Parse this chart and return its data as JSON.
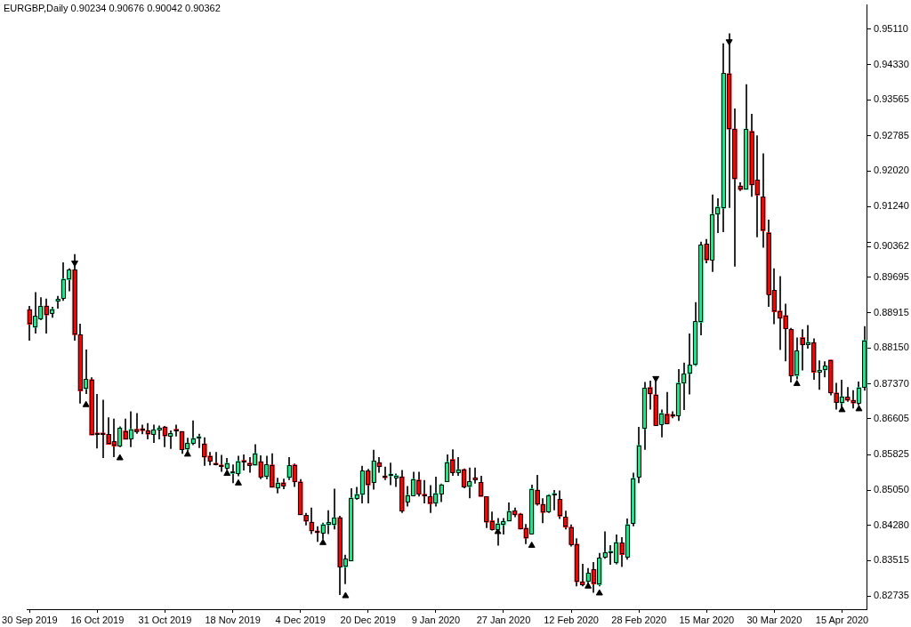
{
  "chart_data": {
    "type": "candlestick",
    "title": "EURGBP,Daily 0.90234 0.90676 0.90042 0.90362",
    "categories": [
      "30 Sep 2019",
      null,
      null,
      null,
      null,
      null,
      null,
      null,
      null,
      null,
      null,
      null,
      "16 Oct 2019",
      null,
      null,
      null,
      null,
      null,
      null,
      null,
      null,
      null,
      null,
      null,
      "31 Oct 2019",
      null,
      null,
      null,
      null,
      null,
      null,
      null,
      null,
      null,
      null,
      null,
      "18 Nov 2019",
      null,
      null,
      null,
      null,
      null,
      null,
      null,
      null,
      null,
      null,
      null,
      "4 Dec 2019",
      null,
      null,
      null,
      null,
      null,
      null,
      null,
      null,
      null,
      null,
      null,
      "20 Dec 2019",
      null,
      null,
      null,
      null,
      null,
      null,
      null,
      null,
      null,
      null,
      null,
      "9 Jan 2020",
      null,
      null,
      null,
      null,
      null,
      null,
      null,
      null,
      null,
      null,
      null,
      "27 Jan 2020",
      null,
      null,
      null,
      null,
      null,
      null,
      null,
      null,
      null,
      null,
      null,
      "12 Feb 2020",
      null,
      null,
      null,
      null,
      null,
      null,
      null,
      null,
      null,
      null,
      null,
      "28 Feb 2020",
      null,
      null,
      null,
      null,
      null,
      null,
      null,
      null,
      null,
      null,
      null,
      "15 Mar 2020",
      null,
      null,
      null,
      null,
      null,
      null,
      null,
      null,
      null,
      null,
      null,
      "30 Mar 2020",
      null,
      null,
      null,
      null,
      null,
      null,
      null,
      null,
      null,
      null,
      null,
      "15 Apr 2020",
      null,
      null,
      null,
      null
    ],
    "ohlc": [
      [
        0.8899,
        0.8907,
        0.8831,
        0.8867
      ],
      [
        0.886,
        0.8937,
        0.8847,
        0.8885
      ],
      [
        0.8878,
        0.8926,
        0.8876,
        0.8907
      ],
      [
        0.8907,
        0.8923,
        0.8847,
        0.8887
      ],
      [
        0.8891,
        0.8905,
        0.8881,
        0.89
      ],
      [
        0.8917,
        0.8929,
        0.8901,
        0.8922
      ],
      [
        0.8923,
        0.9002,
        0.8918,
        0.8966
      ],
      [
        0.8964,
        0.8989,
        0.8939,
        0.8986
      ],
      [
        0.8986,
        0.902,
        0.8831,
        0.8844
      ],
      [
        0.8844,
        0.8868,
        0.8694,
        0.8721
      ],
      [
        0.8726,
        0.8812,
        0.8715,
        0.8747
      ],
      [
        0.8746,
        0.8751,
        0.8625,
        0.8625
      ],
      [
        0.8627,
        0.8715,
        0.8596,
        0.8626
      ],
      [
        0.8627,
        0.8702,
        0.8575,
        0.8626
      ],
      [
        0.8627,
        0.8664,
        0.8605,
        0.8605
      ],
      [
        0.8611,
        0.8661,
        0.8577,
        0.8601
      ],
      [
        0.8601,
        0.8644,
        0.8599,
        0.8641
      ],
      [
        0.8634,
        0.8661,
        0.8616,
        0.8616
      ],
      [
        0.8617,
        0.8677,
        0.8599,
        0.8638
      ],
      [
        0.8638,
        0.8673,
        0.8628,
        0.8633
      ],
      [
        0.8638,
        0.8648,
        0.8627,
        0.8635
      ],
      [
        0.8635,
        0.8651,
        0.8616,
        0.8627
      ],
      [
        0.8626,
        0.8648,
        0.8608,
        0.8637
      ],
      [
        0.8636,
        0.8646,
        0.8616,
        0.8641
      ],
      [
        0.8643,
        0.8645,
        0.8599,
        0.8623
      ],
      [
        0.8622,
        0.8635,
        0.8595,
        0.8629
      ],
      [
        0.8635,
        0.8648,
        0.8622,
        0.8634
      ],
      [
        0.8633,
        0.8633,
        0.8584,
        0.8593
      ],
      [
        0.8594,
        0.8619,
        0.8582,
        0.8608
      ],
      [
        0.8606,
        0.8657,
        0.8603,
        0.8618
      ],
      [
        0.8618,
        0.8628,
        0.8597,
        0.8622
      ],
      [
        0.8606,
        0.862,
        0.8558,
        0.8577
      ],
      [
        0.8579,
        0.8588,
        0.8559,
        0.8568
      ],
      [
        0.8561,
        0.8588,
        0.8559,
        0.856
      ],
      [
        0.856,
        0.8582,
        0.8545,
        0.8556
      ],
      [
        0.8553,
        0.8575,
        0.8549,
        0.8564
      ],
      [
        0.8541,
        0.8561,
        0.852,
        0.8545
      ],
      [
        0.8541,
        0.858,
        0.8535,
        0.8568
      ],
      [
        0.8567,
        0.8583,
        0.8548,
        0.8566
      ],
      [
        0.8564,
        0.8577,
        0.8543,
        0.8559
      ],
      [
        0.8559,
        0.8605,
        0.8559,
        0.8585
      ],
      [
        0.8567,
        0.8581,
        0.8529,
        0.8533
      ],
      [
        0.8534,
        0.858,
        0.8529,
        0.8561
      ],
      [
        0.856,
        0.8585,
        0.8511,
        0.8511
      ],
      [
        0.8509,
        0.8532,
        0.8498,
        0.8521
      ],
      [
        0.8521,
        0.853,
        0.8507,
        0.8514
      ],
      [
        0.8532,
        0.8577,
        0.8527,
        0.8559
      ],
      [
        0.856,
        0.8563,
        0.8512,
        0.8523
      ],
      [
        0.8523,
        0.8529,
        0.8451,
        0.8451
      ],
      [
        0.845,
        0.8455,
        0.8428,
        0.8437
      ],
      [
        0.8435,
        0.8467,
        0.8409,
        0.8416
      ],
      [
        0.8413,
        0.8426,
        0.8392,
        0.8412
      ],
      [
        0.8411,
        0.8434,
        0.8398,
        0.843
      ],
      [
        0.8429,
        0.8461,
        0.8409,
        0.8435
      ],
      [
        0.8429,
        0.8508,
        0.8419,
        0.8445
      ],
      [
        0.8445,
        0.8449,
        0.8276,
        0.8337
      ],
      [
        0.8337,
        0.8364,
        0.83,
        0.8355
      ],
      [
        0.835,
        0.8509,
        0.835,
        0.8488
      ],
      [
        0.8486,
        0.8512,
        0.8484,
        0.8496
      ],
      [
        0.8495,
        0.8558,
        0.8476,
        0.8547
      ],
      [
        0.8547,
        0.8551,
        0.8476,
        0.8516
      ],
      [
        0.8521,
        0.8593,
        0.8506,
        0.8569
      ],
      [
        0.8565,
        0.8577,
        0.8543,
        0.8556
      ],
      [
        0.8534,
        0.8556,
        0.8527,
        0.8532
      ],
      [
        0.8536,
        0.8565,
        0.8516,
        0.854
      ],
      [
        0.8532,
        0.8541,
        0.8512,
        0.8537
      ],
      [
        0.8534,
        0.8549,
        0.8455,
        0.8459
      ],
      [
        0.8479,
        0.8514,
        0.8469,
        0.8494
      ],
      [
        0.8493,
        0.8545,
        0.8493,
        0.8529
      ],
      [
        0.8527,
        0.8545,
        0.8491,
        0.8496
      ],
      [
        0.8496,
        0.8527,
        0.8476,
        0.8492
      ],
      [
        0.8491,
        0.8516,
        0.8455,
        0.8475
      ],
      [
        0.8476,
        0.8534,
        0.8469,
        0.8498
      ],
      [
        0.8496,
        0.8519,
        0.8479,
        0.8517
      ],
      [
        0.8523,
        0.8583,
        0.8523,
        0.8566
      ],
      [
        0.8572,
        0.8594,
        0.8536,
        0.8543
      ],
      [
        0.8543,
        0.8577,
        0.8536,
        0.855
      ],
      [
        0.855,
        0.8552,
        0.8509,
        0.8512
      ],
      [
        0.8512,
        0.8554,
        0.8487,
        0.8524
      ],
      [
        0.8532,
        0.8554,
        0.8519,
        0.8527
      ],
      [
        0.8522,
        0.8536,
        0.8491,
        0.8491
      ],
      [
        0.8491,
        0.8491,
        0.8422,
        0.8435
      ],
      [
        0.8438,
        0.8458,
        0.8417,
        0.8419
      ],
      [
        0.8419,
        0.8444,
        0.8384,
        0.8432
      ],
      [
        0.8429,
        0.8444,
        0.8408,
        0.8437
      ],
      [
        0.8437,
        0.8478,
        0.8437,
        0.8459
      ],
      [
        0.846,
        0.8467,
        0.8446,
        0.8451
      ],
      [
        0.8453,
        0.8455,
        0.8419,
        0.842
      ],
      [
        0.8422,
        0.8431,
        0.8387,
        0.84
      ],
      [
        0.8409,
        0.8517,
        0.8408,
        0.8508
      ],
      [
        0.8505,
        0.8538,
        0.8471,
        0.8474
      ],
      [
        0.8474,
        0.8487,
        0.8433,
        0.8456
      ],
      [
        0.8457,
        0.8496,
        0.8455,
        0.8494
      ],
      [
        0.8494,
        0.8505,
        0.8461,
        0.8495
      ],
      [
        0.8485,
        0.8504,
        0.8442,
        0.8448
      ],
      [
        0.8446,
        0.846,
        0.8419,
        0.8424
      ],
      [
        0.8424,
        0.843,
        0.8382,
        0.8386
      ],
      [
        0.8387,
        0.84,
        0.8295,
        0.8305
      ],
      [
        0.8305,
        0.8344,
        0.8295,
        0.8298
      ],
      [
        0.8305,
        0.8335,
        0.8295,
        0.8324
      ],
      [
        0.8332,
        0.8348,
        0.8281,
        0.83
      ],
      [
        0.8298,
        0.8368,
        0.8295,
        0.8357
      ],
      [
        0.8358,
        0.8415,
        0.8355,
        0.8369
      ],
      [
        0.8368,
        0.8385,
        0.8342,
        0.8371
      ],
      [
        0.8346,
        0.8408,
        0.8343,
        0.8391
      ],
      [
        0.839,
        0.8402,
        0.8337,
        0.8364
      ],
      [
        0.8358,
        0.8443,
        0.8353,
        0.843
      ],
      [
        0.8432,
        0.8543,
        0.8426,
        0.8531
      ],
      [
        0.8534,
        0.8643,
        0.852,
        0.8603
      ],
      [
        0.8639,
        0.8741,
        0.8593,
        0.8728
      ],
      [
        0.8729,
        0.8744,
        0.8681,
        0.8715
      ],
      [
        0.8713,
        0.8744,
        0.8646,
        0.8646
      ],
      [
        0.8648,
        0.8681,
        0.862,
        0.8673
      ],
      [
        0.8671,
        0.8719,
        0.8649,
        0.865
      ],
      [
        0.8667,
        0.8677,
        0.8662,
        0.8666
      ],
      [
        0.8667,
        0.8769,
        0.8656,
        0.8739
      ],
      [
        0.8738,
        0.8783,
        0.868,
        0.8759
      ],
      [
        0.8759,
        0.8847,
        0.8714,
        0.8778
      ],
      [
        0.8778,
        0.8915,
        0.8776,
        0.8873
      ],
      [
        0.8871,
        0.9047,
        0.8843,
        0.904
      ],
      [
        0.9042,
        0.9053,
        0.9,
        0.9007
      ],
      [
        0.9007,
        0.915,
        0.8981,
        0.9107
      ],
      [
        0.9107,
        0.9142,
        0.9066,
        0.9123
      ],
      [
        0.912,
        0.948,
        0.9068,
        0.9415
      ],
      [
        0.9414,
        0.9502,
        0.9121,
        0.9293
      ],
      [
        0.9293,
        0.9338,
        0.8993,
        0.9184
      ],
      [
        0.9169,
        0.9177,
        0.9158,
        0.9161
      ],
      [
        0.9161,
        0.9391,
        0.9161,
        0.9293
      ],
      [
        0.9288,
        0.9326,
        0.9145,
        0.9171
      ],
      [
        0.9182,
        0.9279,
        0.9057,
        0.9149
      ],
      [
        0.9145,
        0.924,
        0.9034,
        0.9071
      ],
      [
        0.9067,
        0.9095,
        0.8905,
        0.8932
      ],
      [
        0.8941,
        0.8989,
        0.8867,
        0.8894
      ],
      [
        0.8896,
        0.8972,
        0.8811,
        0.888
      ],
      [
        0.8886,
        0.8912,
        0.8786,
        0.8857
      ],
      [
        0.8856,
        0.8859,
        0.874,
        0.8754
      ],
      [
        0.8754,
        0.8838,
        0.8747,
        0.8809
      ],
      [
        0.8838,
        0.8856,
        0.8766,
        0.8822
      ],
      [
        0.8822,
        0.8865,
        0.8814,
        0.8828
      ],
      [
        0.8827,
        0.8836,
        0.8746,
        0.8762
      ],
      [
        0.8762,
        0.8788,
        0.8724,
        0.8767
      ],
      [
        0.8767,
        0.8786,
        0.8751,
        0.8776
      ],
      [
        0.8789,
        0.8789,
        0.8712,
        0.8717
      ],
      [
        0.8717,
        0.8739,
        0.8681,
        0.8696
      ],
      [
        0.8695,
        0.8746,
        0.8683,
        0.8709
      ],
      [
        0.8708,
        0.873,
        0.8698,
        0.8701
      ],
      [
        0.8701,
        0.8723,
        0.8683,
        0.8695
      ],
      [
        0.8695,
        0.8742,
        0.869,
        0.8729
      ],
      [
        0.8729,
        0.8863,
        0.8722,
        0.8832
      ]
    ],
    "colors": [
      "#ff0000",
      "#1ee58c",
      "#1ee58c",
      "#ff0000",
      "#1ee58c",
      "#1ee58c",
      "#1ee58c",
      "#1ee58c",
      "#ff0000",
      "#ff0000",
      "#1ee58c",
      "#ff0000",
      "#ff0000",
      "#ff0000",
      "#ff0000",
      "#ff0000",
      "#1ee58c",
      "#ff0000",
      "#1ee58c",
      "#ff0000",
      "#ff0000",
      "#ff0000",
      "#1ee58c",
      "#1ee58c",
      "#ff0000",
      "#1ee58c",
      "#ff0000",
      "#ff0000",
      "#1ee58c",
      "#1ee58c",
      "#1ee58c",
      "#ff0000",
      "#ff0000",
      "#ff0000",
      "#ff0000",
      "#1ee58c",
      "#1ee58c",
      "#1ee58c",
      "#ff0000",
      "#ff0000",
      "#1ee58c",
      "#ff0000",
      "#1ee58c",
      "#ff0000",
      "#1ee58c",
      "#ff0000",
      "#1ee58c",
      "#ff0000",
      "#ff0000",
      "#ff0000",
      "#ff0000",
      "#ff0000",
      "#1ee58c",
      "#1ee58c",
      "#1ee58c",
      "#ff0000",
      "#1ee58c",
      "#1ee58c",
      "#1ee58c",
      "#1ee58c",
      "#ff0000",
      "#1ee58c",
      "#ff0000",
      "#ff0000",
      "#1ee58c",
      "#1ee58c",
      "#ff0000",
      "#1ee58c",
      "#1ee58c",
      "#ff0000",
      "#ff0000",
      "#ff0000",
      "#1ee58c",
      "#1ee58c",
      "#1ee58c",
      "#ff0000",
      "#1ee58c",
      "#ff0000",
      "#1ee58c",
      "#ff0000",
      "#ff0000",
      "#ff0000",
      "#ff0000",
      "#1ee58c",
      "#1ee58c",
      "#1ee58c",
      "#ff0000",
      "#ff0000",
      "#ff0000",
      "#1ee58c",
      "#ff0000",
      "#ff0000",
      "#1ee58c",
      "#1ee58c",
      "#ff0000",
      "#ff0000",
      "#ff0000",
      "#ff0000",
      "#ff0000",
      "#1ee58c",
      "#ff0000",
      "#1ee58c",
      "#1ee58c",
      "#1ee58c",
      "#1ee58c",
      "#ff0000",
      "#1ee58c",
      "#1ee58c",
      "#1ee58c",
      "#1ee58c",
      "#ff0000",
      "#ff0000",
      "#1ee58c",
      "#ff0000",
      "#ff0000",
      "#1ee58c",
      "#1ee58c",
      "#1ee58c",
      "#1ee58c",
      "#1ee58c",
      "#ff0000",
      "#1ee58c",
      "#1ee58c",
      "#1ee58c",
      "#ff0000",
      "#ff0000",
      "#ff0000",
      "#1ee58c",
      "#ff0000",
      "#ff0000",
      "#ff0000",
      "#ff0000",
      "#ff0000",
      "#ff0000",
      "#ff0000",
      "#ff0000",
      "#1ee58c",
      "#ff0000",
      "#1ee58c",
      "#ff0000",
      "#1ee58c",
      "#1ee58c",
      "#ff0000",
      "#ff0000",
      "#1ee58c",
      "#ff0000",
      "#ff0000",
      "#1ee58c",
      "#1ee58c"
    ],
    "series": [
      {
        "type": "scatter",
        "color": "#000000",
        "marker": "triangle",
        "values": [
          null,
          null,
          null,
          null,
          null,
          null,
          null,
          null,
          0.9001,
          null,
          0.8691,
          null,
          null,
          null,
          null,
          null,
          0.8575,
          null,
          null,
          null,
          null,
          null,
          null,
          null,
          null,
          null,
          null,
          null,
          0.8583,
          null,
          null,
          null,
          null,
          null,
          null,
          0.8541,
          null,
          0.852,
          null,
          null,
          null,
          null,
          null,
          null,
          null,
          null,
          null,
          null,
          null,
          null,
          null,
          null,
          0.839,
          null,
          null,
          null,
          0.8274,
          null,
          null,
          null,
          null,
          null,
          null,
          null,
          null,
          null,
          null,
          null,
          null,
          null,
          null,
          null,
          null,
          null,
          null,
          null,
          null,
          null,
          null,
          null,
          null,
          null,
          null,
          0.8414,
          null,
          null,
          null,
          null,
          null,
          0.8384,
          null,
          null,
          null,
          null,
          null,
          null,
          null,
          null,
          null,
          0.8295,
          null,
          0.828,
          null,
          null,
          null,
          null,
          null,
          null,
          null,
          null,
          null,
          0.8749,
          null,
          null,
          null,
          null,
          null,
          null,
          null,
          null,
          null,
          null,
          null,
          null,
          0.9484,
          null,
          null,
          null,
          null,
          null,
          null,
          null,
          null,
          null,
          null,
          null,
          0.8737,
          null,
          null,
          null,
          null,
          null,
          null,
          null,
          0.868,
          null,
          null,
          0.8682,
          null
        ]
      }
    ],
    "ylim": [
      0.8245,
      0.9565
    ],
    "yticks": [
      0.82735,
      0.83515,
      {
        "value": 0.8428,
        "label": "0.84280"
      },
      {
        "value": 0.8505,
        "label": "0.85050"
      },
      0.85825,
      0.86605,
      {
        "value": 0.8737,
        "label": "0.87370"
      },
      {
        "value": 0.8815,
        "label": "0.88150"
      },
      0.88915,
      0.89695,
      0.90362,
      {
        "value": 0.9046,
        "label": null
      },
      {
        "value": 0.9124,
        "label": "0.91240"
      },
      {
        "value": 0.9202,
        "label": "0.92020"
      },
      0.92785,
      0.93565,
      {
        "value": 0.9433,
        "label": "0.94330"
      },
      {
        "value": 0.9511,
        "label": "0.95110"
      }
    ]
  }
}
